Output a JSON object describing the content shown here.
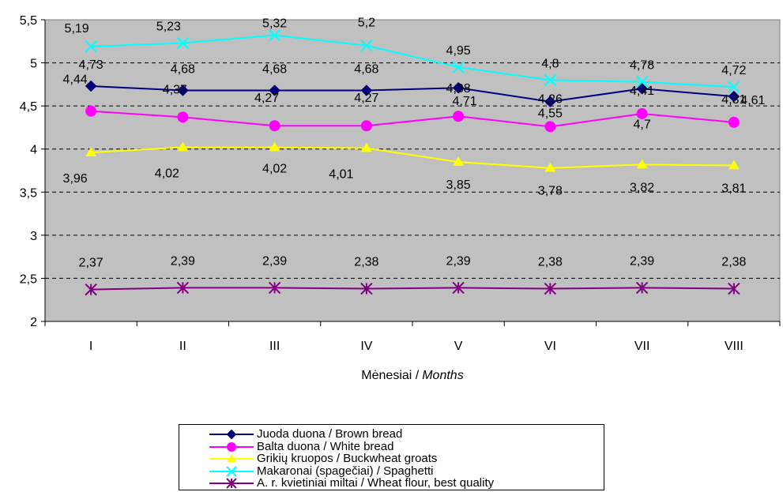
{
  "chart_data": {
    "type": "line",
    "categories": [
      "I",
      "II",
      "III",
      "IV",
      "V",
      "VI",
      "VII",
      "VIII"
    ],
    "xlabel": "Mėnesiai /",
    "xlabel_italic": "Months",
    "ylim": [
      2,
      5.5
    ],
    "yticks": [
      "2",
      "2,5",
      "3",
      "3,5",
      "4",
      "4,5",
      "5",
      "5,5"
    ],
    "grid": "horizontal dashed",
    "plot_background": "#c0c0c0",
    "legend_position": "bottom",
    "series": [
      {
        "name": "Juoda duona / Brown bread",
        "color": "#000080",
        "marker": "diamond",
        "values": [
          4.73,
          4.68,
          4.68,
          4.68,
          4.71,
          4.55,
          4.7,
          4.61
        ],
        "labels": [
          "4,73",
          "4,68",
          "4,68",
          "4,68",
          "4,71",
          "4,55",
          "4,7",
          "4,61"
        ]
      },
      {
        "name": "Balta duona / White bread",
        "color": "#ff00ff",
        "marker": "circle",
        "values": [
          4.44,
          4.37,
          4.27,
          4.27,
          4.38,
          4.26,
          4.41,
          4.31
        ],
        "labels": [
          "4,44",
          "4,37",
          "4,27",
          "4,27",
          "4,38",
          "4,26",
          "4,41",
          "4,31"
        ]
      },
      {
        "name": "Grikių kruopos / Buckwheat groats",
        "color": "#ffff00",
        "marker": "triangle",
        "values": [
          3.96,
          4.02,
          4.02,
          4.01,
          3.85,
          3.78,
          3.82,
          3.81
        ],
        "labels": [
          "3,96",
          "4,02",
          "4,02",
          "4,01",
          "3,85",
          "3,78",
          "3,82",
          "3,81"
        ]
      },
      {
        "name": "Makaronai (spagečiai) / Spaghetti",
        "color": "#00ffff",
        "marker": "x",
        "values": [
          5.19,
          5.23,
          5.32,
          5.2,
          4.95,
          4.8,
          4.78,
          4.72
        ],
        "labels": [
          "5,19",
          "5,23",
          "5,32",
          "5,2",
          "4,95",
          "4,8",
          "4,78",
          "4,72"
        ]
      },
      {
        "name": "A. r. kvietiniai miltai / Wheat flour, best quality",
        "color": "#800080",
        "marker": "asterisk",
        "values": [
          2.37,
          2.39,
          2.39,
          2.38,
          2.39,
          2.38,
          2.39,
          2.38
        ],
        "labels": [
          "2,37",
          "2,39",
          "2,39",
          "2,38",
          "2,39",
          "2,38",
          "2,39",
          "2,38"
        ]
      }
    ]
  }
}
